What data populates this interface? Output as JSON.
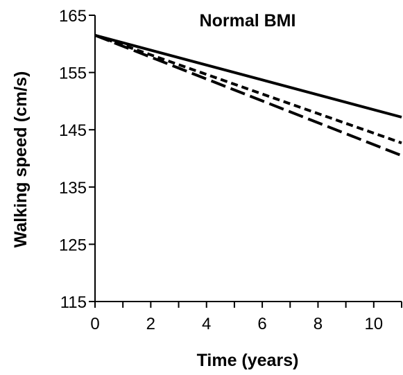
{
  "chart_data": {
    "type": "line",
    "title": "Normal BMI",
    "xlabel": "Time (years)",
    "ylabel": "Walking speed (cm/s)",
    "xlim": [
      0,
      11
    ],
    "ylim": [
      115,
      165
    ],
    "xticks": [
      0,
      2,
      4,
      6,
      8,
      10
    ],
    "yticks": [
      115,
      125,
      135,
      145,
      155,
      165
    ],
    "grid": false,
    "series": [
      {
        "style": "solid",
        "x": [
          0,
          11
        ],
        "y": [
          161.5,
          147.2
        ]
      },
      {
        "style": "short-dash",
        "x": [
          0,
          11
        ],
        "y": [
          161.5,
          142.7
        ]
      },
      {
        "style": "long-dash",
        "x": [
          0,
          11
        ],
        "y": [
          161.5,
          140.5
        ]
      }
    ]
  }
}
